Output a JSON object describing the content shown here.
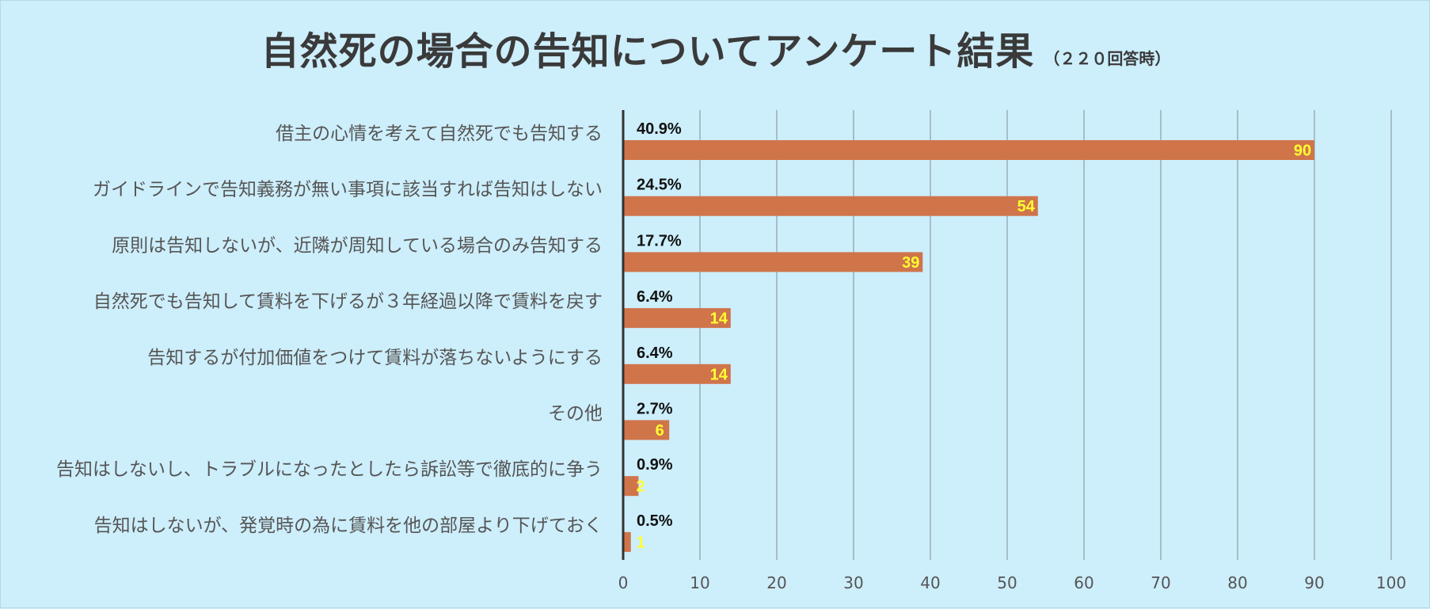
{
  "chart_data": {
    "type": "bar",
    "orientation": "horizontal",
    "title": "自然死の場合の告知についてアンケート結果",
    "subtitle": "（２２０回答時）",
    "categories": [
      "借主の心情を考えて自然死でも告知する",
      "ガイドラインで告知義務が無い事項に該当すれば告知はしない",
      "原則は告知しないが、近隣が周知している場合のみ告知する",
      "自然死でも告知して賃料を下げるが３年経過以降で賃料を戻す",
      "告知するが付加価値をつけて賃料が落ちないようにする",
      "その他",
      "告知はしないし、トラブルになったとしたら訴訟等で徹底的に争う",
      "告知はしないが、発覚時の為に賃料を他の部屋より下げておく"
    ],
    "values": [
      90,
      54,
      39,
      14,
      14,
      6,
      2,
      1
    ],
    "percent_labels": [
      "40.9%",
      "24.5%",
      "17.7%",
      "6.4%",
      "6.4%",
      "2.7%",
      "0.9%",
      "0.5%"
    ],
    "xlim": [
      0,
      100
    ],
    "xticks": [
      0,
      10,
      20,
      30,
      40,
      50,
      60,
      70,
      80,
      90,
      100
    ],
    "xlabel": "",
    "ylabel": "",
    "grid": true,
    "legend": "none",
    "colors": {
      "bar": "#d0744a",
      "value_label": "#ffff33",
      "percent_label": "#111111",
      "gridline": "#8a9ea6",
      "axis": "#333333",
      "background": "#cdeefb"
    }
  }
}
